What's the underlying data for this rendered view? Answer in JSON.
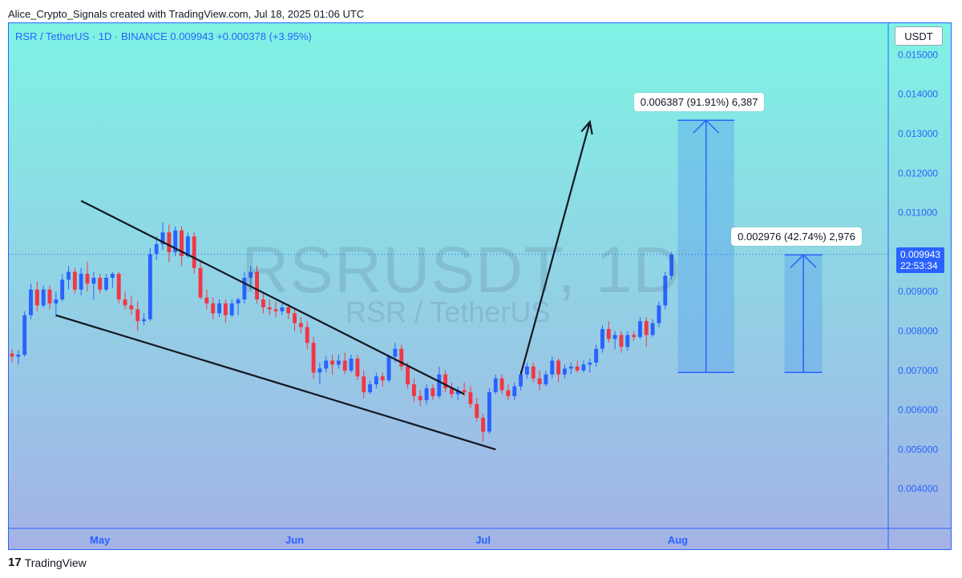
{
  "header": {
    "attribution": "Alice_Crypto_Signals created with TradingView.com, Jul 18, 2025 01:06 UTC"
  },
  "symbol_line": "RSR / TetherUS · 1D · BINANCE  0.009943  +0.000378 (+3.95%)",
  "price_axis_title": "USDT",
  "watermark": {
    "symbol": "RSRUSDT, 1D",
    "pair": "RSR / TetherUS"
  },
  "last_price": {
    "value": "0.009943",
    "countdown": "22:53:34"
  },
  "measure_1": {
    "label": "0.006387 (91.91%) 6,387"
  },
  "measure_2": {
    "label": "0.002976 (42.74%) 2,976"
  },
  "footer": {
    "brand": "TradingView",
    "logo_text": "17"
  },
  "colors": {
    "up": "#2962ff",
    "down": "#f23645",
    "bg_top": "#7ff3e4",
    "bg_bottom": "#a4b2e6",
    "measure_fill": "#5aa6ea"
  },
  "chart_data": {
    "type": "candlestick",
    "title": "",
    "x_ticks": [
      "May",
      "Jun",
      "Jul",
      "Aug"
    ],
    "y_ticks": [
      "0.004000",
      "0.005000",
      "0.006000",
      "0.007000",
      "0.008000",
      "0.009000",
      "0.010000",
      "0.011000",
      "0.012000",
      "0.013000",
      "0.014000",
      "0.015000"
    ],
    "ylim": [
      0.003,
      0.0158
    ],
    "xlim": [
      "2025-04-17",
      "2025-09-03"
    ],
    "candles": [
      {
        "d": "2025-04-17",
        "o": 0.00743,
        "h": 0.00755,
        "l": 0.0072,
        "c": 0.00735
      },
      {
        "d": "2025-04-18",
        "o": 0.00735,
        "h": 0.00752,
        "l": 0.00715,
        "c": 0.0074
      },
      {
        "d": "2025-04-19",
        "o": 0.0074,
        "h": 0.0085,
        "l": 0.00735,
        "c": 0.0084
      },
      {
        "d": "2025-04-20",
        "o": 0.0084,
        "h": 0.0092,
        "l": 0.0083,
        "c": 0.00905
      },
      {
        "d": "2025-04-21",
        "o": 0.00905,
        "h": 0.00925,
        "l": 0.0085,
        "c": 0.00865
      },
      {
        "d": "2025-04-22",
        "o": 0.00865,
        "h": 0.00915,
        "l": 0.0086,
        "c": 0.00905
      },
      {
        "d": "2025-04-23",
        "o": 0.00905,
        "h": 0.00915,
        "l": 0.00855,
        "c": 0.0087
      },
      {
        "d": "2025-04-24",
        "o": 0.0087,
        "h": 0.009,
        "l": 0.00835,
        "c": 0.0088
      },
      {
        "d": "2025-04-25",
        "o": 0.0088,
        "h": 0.00945,
        "l": 0.00875,
        "c": 0.0093
      },
      {
        "d": "2025-04-26",
        "o": 0.0093,
        "h": 0.00965,
        "l": 0.00905,
        "c": 0.0095
      },
      {
        "d": "2025-04-27",
        "o": 0.0095,
        "h": 0.0096,
        "l": 0.00895,
        "c": 0.00905
      },
      {
        "d": "2025-04-28",
        "o": 0.00905,
        "h": 0.0096,
        "l": 0.0089,
        "c": 0.00945
      },
      {
        "d": "2025-04-29",
        "o": 0.00945,
        "h": 0.00975,
        "l": 0.009,
        "c": 0.0092
      },
      {
        "d": "2025-04-30",
        "o": 0.0092,
        "h": 0.0095,
        "l": 0.0088,
        "c": 0.00935
      },
      {
        "d": "2025-05-01",
        "o": 0.00935,
        "h": 0.00945,
        "l": 0.00895,
        "c": 0.00905
      },
      {
        "d": "2025-05-02",
        "o": 0.00905,
        "h": 0.00945,
        "l": 0.009,
        "c": 0.00935
      },
      {
        "d": "2025-05-03",
        "o": 0.00935,
        "h": 0.0095,
        "l": 0.0091,
        "c": 0.00945
      },
      {
        "d": "2025-05-04",
        "o": 0.00945,
        "h": 0.0095,
        "l": 0.0087,
        "c": 0.0088
      },
      {
        "d": "2025-05-05",
        "o": 0.0088,
        "h": 0.009,
        "l": 0.00855,
        "c": 0.00865
      },
      {
        "d": "2025-05-06",
        "o": 0.00865,
        "h": 0.0089,
        "l": 0.0084,
        "c": 0.00855
      },
      {
        "d": "2025-05-07",
        "o": 0.00855,
        "h": 0.00875,
        "l": 0.008,
        "c": 0.00825
      },
      {
        "d": "2025-05-08",
        "o": 0.00825,
        "h": 0.00845,
        "l": 0.00815,
        "c": 0.0083
      },
      {
        "d": "2025-05-09",
        "o": 0.0083,
        "h": 0.0101,
        "l": 0.00825,
        "c": 0.00995
      },
      {
        "d": "2025-05-10",
        "o": 0.00995,
        "h": 0.0104,
        "l": 0.0098,
        "c": 0.0102
      },
      {
        "d": "2025-05-11",
        "o": 0.0102,
        "h": 0.01075,
        "l": 0.01005,
        "c": 0.0105
      },
      {
        "d": "2025-05-12",
        "o": 0.0105,
        "h": 0.0107,
        "l": 0.00975,
        "c": 0.01
      },
      {
        "d": "2025-05-13",
        "o": 0.01,
        "h": 0.01065,
        "l": 0.0099,
        "c": 0.01055
      },
      {
        "d": "2025-05-14",
        "o": 0.01055,
        "h": 0.01065,
        "l": 0.00965,
        "c": 0.0099
      },
      {
        "d": "2025-05-15",
        "o": 0.0099,
        "h": 0.0105,
        "l": 0.00985,
        "c": 0.0104
      },
      {
        "d": "2025-05-16",
        "o": 0.0104,
        "h": 0.0105,
        "l": 0.00945,
        "c": 0.0096
      },
      {
        "d": "2025-05-17",
        "o": 0.0096,
        "h": 0.00975,
        "l": 0.0088,
        "c": 0.00885
      },
      {
        "d": "2025-05-18",
        "o": 0.00885,
        "h": 0.00905,
        "l": 0.00855,
        "c": 0.0087
      },
      {
        "d": "2025-05-19",
        "o": 0.0087,
        "h": 0.00885,
        "l": 0.0083,
        "c": 0.00845
      },
      {
        "d": "2025-05-20",
        "o": 0.00845,
        "h": 0.0088,
        "l": 0.00835,
        "c": 0.0087
      },
      {
        "d": "2025-05-21",
        "o": 0.0087,
        "h": 0.0088,
        "l": 0.0082,
        "c": 0.0084
      },
      {
        "d": "2025-05-22",
        "o": 0.0084,
        "h": 0.0088,
        "l": 0.00835,
        "c": 0.0087
      },
      {
        "d": "2025-05-23",
        "o": 0.0087,
        "h": 0.00885,
        "l": 0.0084,
        "c": 0.0088
      },
      {
        "d": "2025-05-24",
        "o": 0.0088,
        "h": 0.0095,
        "l": 0.0087,
        "c": 0.00935
      },
      {
        "d": "2025-05-25",
        "o": 0.00935,
        "h": 0.00965,
        "l": 0.00905,
        "c": 0.0095
      },
      {
        "d": "2025-05-26",
        "o": 0.0095,
        "h": 0.00965,
        "l": 0.0087,
        "c": 0.0088
      },
      {
        "d": "2025-05-27",
        "o": 0.0088,
        "h": 0.00895,
        "l": 0.00845,
        "c": 0.0086
      },
      {
        "d": "2025-05-28",
        "o": 0.0086,
        "h": 0.0088,
        "l": 0.0084,
        "c": 0.00855
      },
      {
        "d": "2025-05-29",
        "o": 0.00855,
        "h": 0.00875,
        "l": 0.00835,
        "c": 0.0085
      },
      {
        "d": "2025-05-30",
        "o": 0.0085,
        "h": 0.0087,
        "l": 0.0084,
        "c": 0.0086
      },
      {
        "d": "2025-05-31",
        "o": 0.0086,
        "h": 0.0087,
        "l": 0.0083,
        "c": 0.00845
      },
      {
        "d": "2025-06-01",
        "o": 0.00845,
        "h": 0.0086,
        "l": 0.008,
        "c": 0.0082
      },
      {
        "d": "2025-06-02",
        "o": 0.0082,
        "h": 0.00835,
        "l": 0.00795,
        "c": 0.0081
      },
      {
        "d": "2025-06-03",
        "o": 0.0081,
        "h": 0.00825,
        "l": 0.00755,
        "c": 0.0077
      },
      {
        "d": "2025-06-04",
        "o": 0.0077,
        "h": 0.00785,
        "l": 0.0068,
        "c": 0.00695
      },
      {
        "d": "2025-06-05",
        "o": 0.00695,
        "h": 0.0072,
        "l": 0.00665,
        "c": 0.00705
      },
      {
        "d": "2025-06-06",
        "o": 0.00705,
        "h": 0.00735,
        "l": 0.00695,
        "c": 0.00725
      },
      {
        "d": "2025-06-07",
        "o": 0.00725,
        "h": 0.0074,
        "l": 0.0069,
        "c": 0.00715
      },
      {
        "d": "2025-06-08",
        "o": 0.00715,
        "h": 0.0074,
        "l": 0.00705,
        "c": 0.00725
      },
      {
        "d": "2025-06-09",
        "o": 0.00725,
        "h": 0.00745,
        "l": 0.0069,
        "c": 0.007
      },
      {
        "d": "2025-06-10",
        "o": 0.007,
        "h": 0.0074,
        "l": 0.00695,
        "c": 0.0073
      },
      {
        "d": "2025-06-11",
        "o": 0.0073,
        "h": 0.0074,
        "l": 0.00675,
        "c": 0.00685
      },
      {
        "d": "2025-06-12",
        "o": 0.00685,
        "h": 0.007,
        "l": 0.0063,
        "c": 0.00645
      },
      {
        "d": "2025-06-13",
        "o": 0.00645,
        "h": 0.00675,
        "l": 0.0064,
        "c": 0.00665
      },
      {
        "d": "2025-06-14",
        "o": 0.00665,
        "h": 0.00695,
        "l": 0.00655,
        "c": 0.00685
      },
      {
        "d": "2025-06-15",
        "o": 0.00685,
        "h": 0.00695,
        "l": 0.0066,
        "c": 0.00675
      },
      {
        "d": "2025-06-16",
        "o": 0.00675,
        "h": 0.0074,
        "l": 0.0067,
        "c": 0.00735
      },
      {
        "d": "2025-06-17",
        "o": 0.00735,
        "h": 0.0077,
        "l": 0.0072,
        "c": 0.00755
      },
      {
        "d": "2025-06-18",
        "o": 0.00755,
        "h": 0.00765,
        "l": 0.007,
        "c": 0.0071
      },
      {
        "d": "2025-06-19",
        "o": 0.0071,
        "h": 0.0072,
        "l": 0.00655,
        "c": 0.00665
      },
      {
        "d": "2025-06-20",
        "o": 0.00665,
        "h": 0.0068,
        "l": 0.0062,
        "c": 0.00635
      },
      {
        "d": "2025-06-21",
        "o": 0.00635,
        "h": 0.0065,
        "l": 0.0061,
        "c": 0.00625
      },
      {
        "d": "2025-06-22",
        "o": 0.00625,
        "h": 0.00665,
        "l": 0.00615,
        "c": 0.00655
      },
      {
        "d": "2025-06-23",
        "o": 0.00655,
        "h": 0.00665,
        "l": 0.00625,
        "c": 0.00635
      },
      {
        "d": "2025-06-24",
        "o": 0.00635,
        "h": 0.0071,
        "l": 0.0063,
        "c": 0.0069
      },
      {
        "d": "2025-06-25",
        "o": 0.0069,
        "h": 0.007,
        "l": 0.00645,
        "c": 0.00655
      },
      {
        "d": "2025-06-26",
        "o": 0.00655,
        "h": 0.0067,
        "l": 0.0063,
        "c": 0.0064
      },
      {
        "d": "2025-06-27",
        "o": 0.0064,
        "h": 0.0066,
        "l": 0.00625,
        "c": 0.0065
      },
      {
        "d": "2025-06-28",
        "o": 0.0065,
        "h": 0.0067,
        "l": 0.00635,
        "c": 0.00645
      },
      {
        "d": "2025-06-29",
        "o": 0.00645,
        "h": 0.0066,
        "l": 0.00605,
        "c": 0.00615
      },
      {
        "d": "2025-06-30",
        "o": 0.00615,
        "h": 0.0063,
        "l": 0.0057,
        "c": 0.0058
      },
      {
        "d": "2025-07-01",
        "o": 0.0058,
        "h": 0.0059,
        "l": 0.0052,
        "c": 0.00545
      },
      {
        "d": "2025-07-02",
        "o": 0.00545,
        "h": 0.00655,
        "l": 0.0054,
        "c": 0.00645
      },
      {
        "d": "2025-07-03",
        "o": 0.00645,
        "h": 0.0069,
        "l": 0.0064,
        "c": 0.0068
      },
      {
        "d": "2025-07-04",
        "o": 0.0068,
        "h": 0.0069,
        "l": 0.0064,
        "c": 0.0065
      },
      {
        "d": "2025-07-05",
        "o": 0.0065,
        "h": 0.00665,
        "l": 0.00625,
        "c": 0.00635
      },
      {
        "d": "2025-07-06",
        "o": 0.00635,
        "h": 0.0067,
        "l": 0.00625,
        "c": 0.0066
      },
      {
        "d": "2025-07-07",
        "o": 0.0066,
        "h": 0.007,
        "l": 0.0065,
        "c": 0.0069
      },
      {
        "d": "2025-07-08",
        "o": 0.0069,
        "h": 0.0072,
        "l": 0.0068,
        "c": 0.0071
      },
      {
        "d": "2025-07-09",
        "o": 0.0071,
        "h": 0.0072,
        "l": 0.0067,
        "c": 0.0068
      },
      {
        "d": "2025-07-10",
        "o": 0.0068,
        "h": 0.007,
        "l": 0.0065,
        "c": 0.00665
      },
      {
        "d": "2025-07-11",
        "o": 0.00665,
        "h": 0.007,
        "l": 0.0066,
        "c": 0.0069
      },
      {
        "d": "2025-07-12",
        "o": 0.0069,
        "h": 0.00735,
        "l": 0.0068,
        "c": 0.00725
      },
      {
        "d": "2025-07-13",
        "o": 0.00725,
        "h": 0.0073,
        "l": 0.0067,
        "c": 0.0069
      },
      {
        "d": "2025-07-14",
        "o": 0.0069,
        "h": 0.00715,
        "l": 0.0068,
        "c": 0.00705
      },
      {
        "d": "2025-07-15",
        "o": 0.00705,
        "h": 0.0072,
        "l": 0.0069,
        "c": 0.0071
      },
      {
        "d": "2025-07-16",
        "o": 0.0071,
        "h": 0.00725,
        "l": 0.00695,
        "c": 0.007
      },
      {
        "d": "2025-07-17",
        "o": 0.007,
        "h": 0.00725,
        "l": 0.00695,
        "c": 0.00715
      },
      {
        "d": "2025-07-18",
        "o": 0.00715,
        "h": 0.0073,
        "l": 0.00695,
        "c": 0.0072
      },
      {
        "d": "2025-07-19",
        "o": 0.0072,
        "h": 0.00765,
        "l": 0.0071,
        "c": 0.00755
      },
      {
        "d": "2025-07-20",
        "o": 0.00755,
        "h": 0.00815,
        "l": 0.00745,
        "c": 0.00805
      },
      {
        "d": "2025-07-21",
        "o": 0.00805,
        "h": 0.00825,
        "l": 0.0077,
        "c": 0.0078
      },
      {
        "d": "2025-07-22",
        "o": 0.0078,
        "h": 0.008,
        "l": 0.00755,
        "c": 0.0079
      },
      {
        "d": "2025-07-23",
        "o": 0.0079,
        "h": 0.008,
        "l": 0.00745,
        "c": 0.0076
      },
      {
        "d": "2025-07-24",
        "o": 0.0076,
        "h": 0.008,
        "l": 0.0075,
        "c": 0.0079
      },
      {
        "d": "2025-07-25",
        "o": 0.0079,
        "h": 0.008,
        "l": 0.00775,
        "c": 0.00785
      },
      {
        "d": "2025-07-26",
        "o": 0.00785,
        "h": 0.00835,
        "l": 0.0078,
        "c": 0.00825
      },
      {
        "d": "2025-07-27",
        "o": 0.00825,
        "h": 0.00835,
        "l": 0.0076,
        "c": 0.0079
      },
      {
        "d": "2025-07-28",
        "o": 0.0079,
        "h": 0.0083,
        "l": 0.00785,
        "c": 0.0082
      },
      {
        "d": "2025-07-29",
        "o": 0.0082,
        "h": 0.00875,
        "l": 0.0081,
        "c": 0.00865
      },
      {
        "d": "2025-07-30",
        "o": 0.00865,
        "h": 0.0095,
        "l": 0.00855,
        "c": 0.0094
      },
      {
        "d": "2025-07-31",
        "o": 0.0094,
        "h": 0.01,
        "l": 0.0093,
        "c": 0.00994
      }
    ],
    "trendlines": [
      {
        "from": [
          "2025-04-28",
          0.0113
        ],
        "to": [
          "2025-06-28",
          0.0064
        ]
      },
      {
        "from": [
          "2025-04-24",
          0.0084
        ],
        "to": [
          "2025-07-03",
          0.005
        ]
      },
      {
        "from": [
          "2025-07-07",
          0.0069
        ],
        "to": [
          "2025-07-18",
          0.0133
        ],
        "arrow": true
      }
    ],
    "measurements": [
      {
        "x_from": "2025-08-01",
        "x_to": "2025-08-10",
        "low": 0.00695,
        "high": 0.01334,
        "label": "0.006387 (91.91%) 6,387"
      },
      {
        "x_from": "2025-08-18",
        "x_to": "2025-08-24",
        "low": 0.00695,
        "high": 0.00993,
        "label": "0.002976 (42.74%) 2,976"
      }
    ],
    "last_price": 0.009943
  }
}
